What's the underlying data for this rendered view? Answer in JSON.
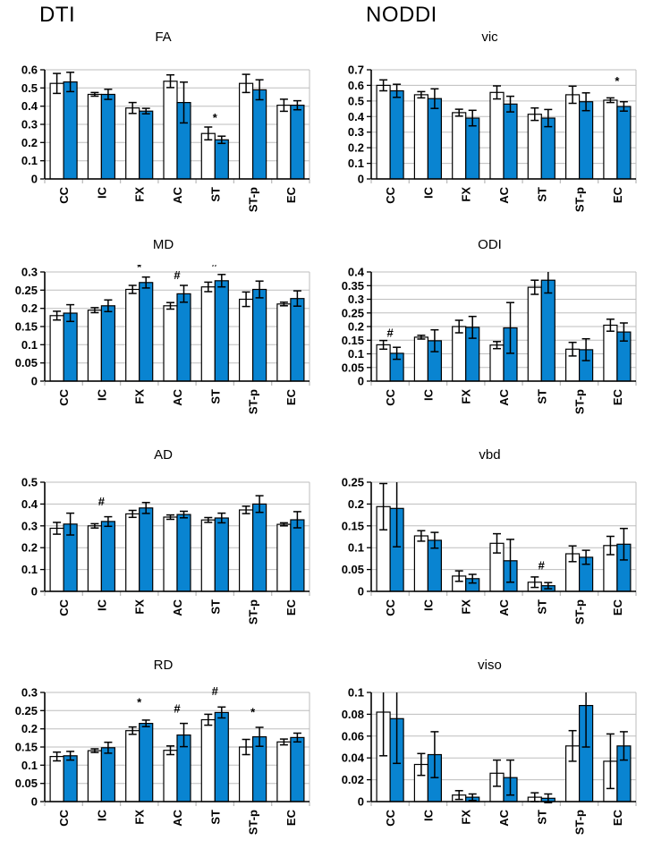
{
  "groups": {
    "left": "DTI",
    "right": "NODDI"
  },
  "colors": {
    "bar_fill_white": "#ffffff",
    "bar_fill_blue": "#0984d1",
    "bar_border": "#000000",
    "grid": "#bdbdbd",
    "axis": "#000000"
  },
  "chart_data": [
    {
      "type": "bar",
      "group": "DTI",
      "title": "FA",
      "categories": [
        "CC",
        "IC",
        "FX",
        "AC",
        "ST",
        "ST-p",
        "EC"
      ],
      "series": [
        {
          "name": "white",
          "values": [
            0.525,
            0.465,
            0.39,
            0.537,
            0.25,
            0.525,
            0.405
          ],
          "errors": [
            0.055,
            0.01,
            0.03,
            0.035,
            0.035,
            0.05,
            0.033
          ]
        },
        {
          "name": "blue",
          "values": [
            0.533,
            0.465,
            0.373,
            0.42,
            0.215,
            0.49,
            0.405
          ],
          "errors": [
            0.053,
            0.028,
            0.015,
            0.112,
            0.02,
            0.055,
            0.025
          ]
        }
      ],
      "ylim": [
        0,
        0.6
      ],
      "yticks": [
        "0",
        "0.1",
        "0.2",
        "0.3",
        "0.4",
        "0.5",
        "0.6"
      ],
      "annotations": [
        {
          "category": "ST",
          "symbol": "*",
          "y": 0.335
        }
      ]
    },
    {
      "type": "bar",
      "group": "NODDI",
      "title": "vic",
      "categories": [
        "CC",
        "IC",
        "FX",
        "AC",
        "ST",
        "ST-p",
        "EC"
      ],
      "series": [
        {
          "name": "white",
          "values": [
            0.6,
            0.54,
            0.425,
            0.555,
            0.415,
            0.54,
            0.505
          ],
          "errors": [
            0.035,
            0.02,
            0.022,
            0.042,
            0.04,
            0.055,
            0.015
          ]
        },
        {
          "name": "blue",
          "values": [
            0.565,
            0.515,
            0.39,
            0.48,
            0.39,
            0.495,
            0.465
          ],
          "errors": [
            0.042,
            0.063,
            0.05,
            0.05,
            0.055,
            0.057,
            0.03
          ]
        }
      ],
      "ylim": [
        0,
        0.7
      ],
      "yticks": [
        "0",
        "0.1",
        "0.2",
        "0.3",
        "0.4",
        "0.5",
        "0.6",
        "0.7"
      ],
      "annotations": [
        {
          "category": "EC",
          "symbol": "*",
          "y": 0.625
        }
      ]
    },
    {
      "type": "bar",
      "group": "DTI",
      "title": "MD",
      "categories": [
        "CC",
        "IC",
        "FX",
        "AC",
        "ST",
        "ST-p",
        "EC"
      ],
      "series": [
        {
          "name": "white",
          "values": [
            0.18,
            0.195,
            0.252,
            0.207,
            0.259,
            0.225,
            0.212
          ],
          "errors": [
            0.012,
            0.007,
            0.011,
            0.009,
            0.013,
            0.02,
            0.005
          ]
        },
        {
          "name": "blue",
          "values": [
            0.187,
            0.207,
            0.271,
            0.24,
            0.276,
            0.252,
            0.227
          ],
          "errors": [
            0.023,
            0.016,
            0.015,
            0.023,
            0.017,
            0.023,
            0.021
          ]
        }
      ],
      "ylim": [
        0,
        0.3
      ],
      "yticks": [
        "0",
        "0.05",
        "0.1",
        "0.15",
        "0.2",
        "0.25",
        "0.3"
      ],
      "annotations": [
        {
          "category": "FX",
          "symbol": "*",
          "y": 0.312
        },
        {
          "category": "AC",
          "symbol": "#",
          "y": 0.29
        },
        {
          "category": "ST",
          "symbol": "#",
          "y": 0.325
        }
      ]
    },
    {
      "type": "bar",
      "group": "NODDI",
      "title": "ODI",
      "categories": [
        "CC",
        "IC",
        "FX",
        "AC",
        "ST",
        "ST-p",
        "EC"
      ],
      "series": [
        {
          "name": "white",
          "values": [
            0.133,
            0.161,
            0.2,
            0.132,
            0.344,
            0.117,
            0.205
          ],
          "errors": [
            0.016,
            0.007,
            0.023,
            0.013,
            0.026,
            0.025,
            0.022
          ]
        },
        {
          "name": "blue",
          "values": [
            0.102,
            0.148,
            0.197,
            0.195,
            0.37,
            0.115,
            0.18
          ],
          "errors": [
            0.022,
            0.04,
            0.04,
            0.093,
            0.047,
            0.04,
            0.033
          ]
        }
      ],
      "ylim": [
        0,
        0.4
      ],
      "yticks": [
        "0",
        "0.05",
        "0.1",
        "0.15",
        "0.2",
        "0.25",
        "0.3",
        "0.35",
        "0.4"
      ],
      "annotations": [
        {
          "category": "CC",
          "symbol": "#",
          "y": 0.175
        }
      ]
    },
    {
      "type": "bar",
      "group": "DTI",
      "title": "AD",
      "categories": [
        "CC",
        "IC",
        "FX",
        "AC",
        "ST",
        "ST-p",
        "EC"
      ],
      "series": [
        {
          "name": "white",
          "values": [
            0.289,
            0.3,
            0.355,
            0.34,
            0.327,
            0.373,
            0.307
          ],
          "errors": [
            0.027,
            0.01,
            0.016,
            0.01,
            0.011,
            0.017,
            0.007
          ]
        },
        {
          "name": "blue",
          "values": [
            0.308,
            0.32,
            0.382,
            0.352,
            0.336,
            0.4,
            0.328
          ],
          "errors": [
            0.05,
            0.022,
            0.025,
            0.015,
            0.022,
            0.038,
            0.037
          ]
        }
      ],
      "ylim": [
        0,
        0.5
      ],
      "yticks": [
        "0",
        "0.1",
        "0.2",
        "0.3",
        "0.4",
        "0.5"
      ],
      "annotations": [
        {
          "category": "IC",
          "symbol": "#",
          "y": 0.41
        }
      ]
    },
    {
      "type": "bar",
      "group": "NODDI",
      "title": "vbd",
      "categories": [
        "CC",
        "IC",
        "FX",
        "AC",
        "ST",
        "ST-p",
        "EC"
      ],
      "series": [
        {
          "name": "white",
          "values": [
            0.194,
            0.127,
            0.035,
            0.11,
            0.021,
            0.086,
            0.105
          ],
          "errors": [
            0.053,
            0.012,
            0.012,
            0.022,
            0.012,
            0.018,
            0.021
          ]
        },
        {
          "name": "blue",
          "values": [
            0.19,
            0.117,
            0.029,
            0.07,
            0.013,
            0.078,
            0.108
          ],
          "errors": [
            0.088,
            0.018,
            0.01,
            0.049,
            0.007,
            0.016,
            0.036
          ]
        }
      ],
      "ylim": [
        0,
        0.25
      ],
      "yticks": [
        "0",
        "0.05",
        "0.1",
        "0.15",
        "0.2",
        "0.25"
      ],
      "annotations": [
        {
          "category": "ST",
          "symbol": "#",
          "y": 0.058
        }
      ]
    },
    {
      "type": "bar",
      "group": "DTI",
      "title": "RD",
      "categories": [
        "CC",
        "IC",
        "FX",
        "AC",
        "ST",
        "ST-p",
        "EC"
      ],
      "series": [
        {
          "name": "white",
          "values": [
            0.124,
            0.14,
            0.195,
            0.141,
            0.225,
            0.15,
            0.164
          ],
          "errors": [
            0.012,
            0.005,
            0.01,
            0.012,
            0.015,
            0.021,
            0.008
          ]
        },
        {
          "name": "blue",
          "values": [
            0.126,
            0.148,
            0.215,
            0.183,
            0.245,
            0.178,
            0.176
          ],
          "errors": [
            0.012,
            0.015,
            0.009,
            0.032,
            0.015,
            0.026,
            0.012
          ]
        }
      ],
      "ylim": [
        0,
        0.3
      ],
      "yticks": [
        "0",
        "0.05",
        "0.1",
        "0.15",
        "0.2",
        "0.25",
        "0.3"
      ],
      "annotations": [
        {
          "category": "FX",
          "symbol": "*",
          "y": 0.272
        },
        {
          "category": "AC",
          "symbol": "#",
          "y": 0.255
        },
        {
          "category": "ST",
          "symbol": "#",
          "y": 0.303
        },
        {
          "category": "ST-p",
          "symbol": "*",
          "y": 0.245
        }
      ]
    },
    {
      "type": "bar",
      "group": "NODDI",
      "title": "viso",
      "categories": [
        "CC",
        "IC",
        "FX",
        "AC",
        "ST",
        "ST-p",
        "EC"
      ],
      "series": [
        {
          "name": "white",
          "values": [
            0.082,
            0.034,
            0.006,
            0.026,
            0.004,
            0.051,
            0.037
          ],
          "errors": [
            0.04,
            0.01,
            0.004,
            0.012,
            0.004,
            0.014,
            0.025
          ]
        },
        {
          "name": "blue",
          "values": [
            0.076,
            0.043,
            0.004,
            0.022,
            0.003,
            0.088,
            0.051
          ],
          "errors": [
            0.041,
            0.021,
            0.003,
            0.016,
            0.004,
            0.038,
            0.013
          ]
        }
      ],
      "ylim": [
        0,
        0.1
      ],
      "yticks": [
        "0",
        "0.02",
        "0.04",
        "0.06",
        "0.08",
        "0.1"
      ],
      "annotations": []
    }
  ]
}
